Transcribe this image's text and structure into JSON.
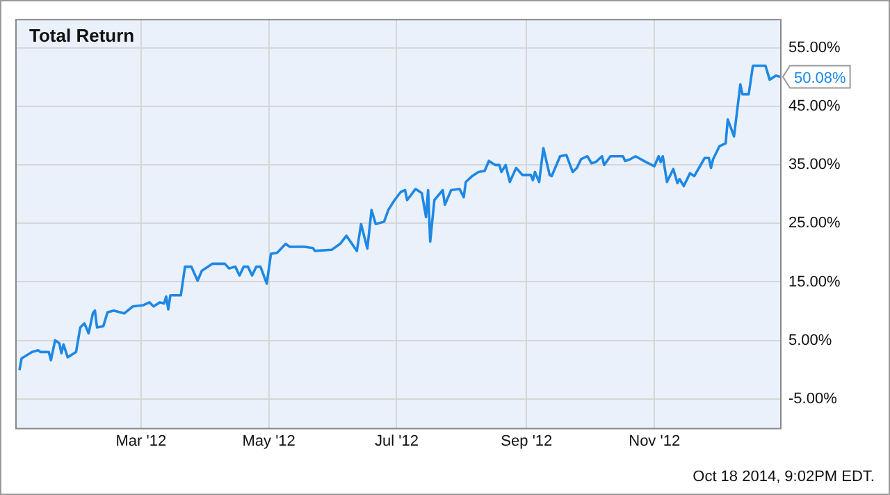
{
  "chart_data": {
    "type": "line",
    "title": "Total Return",
    "x": [
      "2012-01-03",
      "2012-01-04",
      "2012-01-09",
      "2012-01-12",
      "2012-01-13",
      "2012-01-17",
      "2012-01-18",
      "2012-01-20",
      "2012-01-22",
      "2012-01-23",
      "2012-01-24",
      "2012-01-26",
      "2012-01-30",
      "2012-02-01",
      "2012-02-03",
      "2012-02-05",
      "2012-02-07",
      "2012-02-08",
      "2012-02-09",
      "2012-02-12",
      "2012-02-14",
      "2012-02-17",
      "2012-02-22",
      "2012-02-26",
      "2012-03-02",
      "2012-03-05",
      "2012-03-07",
      "2012-03-10",
      "2012-03-12",
      "2012-03-13",
      "2012-03-14",
      "2012-03-15",
      "2012-03-20",
      "2012-03-22",
      "2012-03-25",
      "2012-03-28",
      "2012-03-30",
      "2012-04-04",
      "2012-04-10",
      "2012-04-12",
      "2012-04-15",
      "2012-04-17",
      "2012-04-19",
      "2012-04-21",
      "2012-04-23",
      "2012-04-25",
      "2012-04-27",
      "2012-04-30",
      "2012-05-02",
      "2012-05-05",
      "2012-05-09",
      "2012-05-11",
      "2012-05-18",
      "2012-05-22",
      "2012-05-23",
      "2012-05-31",
      "2012-06-04",
      "2012-06-07",
      "2012-06-12",
      "2012-06-14",
      "2012-06-17",
      "2012-06-19",
      "2012-06-21",
      "2012-06-25",
      "2012-06-27",
      "2012-06-30",
      "2012-07-03",
      "2012-07-05",
      "2012-07-06",
      "2012-07-10",
      "2012-07-13",
      "2012-07-15",
      "2012-07-16",
      "2012-07-17",
      "2012-07-19",
      "2012-07-23",
      "2012-07-24",
      "2012-07-27",
      "2012-07-31",
      "2012-08-02",
      "2012-08-03",
      "2012-08-06",
      "2012-08-09",
      "2012-08-12",
      "2012-08-14",
      "2012-08-17",
      "2012-08-19",
      "2012-08-20",
      "2012-08-22",
      "2012-08-24",
      "2012-08-27",
      "2012-08-30",
      "2012-09-03",
      "2012-09-04",
      "2012-09-05",
      "2012-09-07",
      "2012-09-09",
      "2012-09-12",
      "2012-09-13",
      "2012-09-17",
      "2012-09-20",
      "2012-09-23",
      "2012-09-25",
      "2012-09-27",
      "2012-09-30",
      "2012-10-02",
      "2012-10-04",
      "2012-10-07",
      "2012-10-08",
      "2012-10-11",
      "2012-10-17",
      "2012-10-18",
      "2012-10-20",
      "2012-10-23",
      "2012-10-28",
      "2012-11-01",
      "2012-11-03",
      "2012-11-04",
      "2012-11-05",
      "2012-11-07",
      "2012-11-10",
      "2012-11-12",
      "2012-11-13",
      "2012-11-15",
      "2012-11-18",
      "2012-11-20",
      "2012-11-25",
      "2012-11-27",
      "2012-11-28",
      "2012-11-29",
      "2012-12-02",
      "2012-12-05",
      "2012-12-06",
      "2012-12-09",
      "2012-12-12",
      "2012-12-13",
      "2012-12-16",
      "2012-12-18",
      "2012-12-24",
      "2012-12-26",
      "2012-12-29",
      "2012-12-31"
    ],
    "series": [
      {
        "color": "#1e88e5",
        "values": [
          -0.1,
          1.9,
          3.0,
          3.3,
          3.0,
          3.0,
          1.6,
          5.0,
          4.5,
          2.8,
          4.3,
          2.1,
          3.0,
          7.2,
          7.9,
          6.2,
          9.6,
          10.1,
          7.2,
          7.4,
          9.8,
          10.1,
          9.6,
          10.8,
          11.0,
          11.5,
          10.8,
          11.5,
          11.3,
          12.5,
          10.3,
          12.7,
          12.7,
          17.6,
          17.6,
          15.2,
          16.9,
          18.1,
          18.1,
          17.3,
          17.6,
          16.1,
          17.6,
          17.6,
          16.1,
          17.6,
          17.6,
          14.7,
          19.8,
          20.0,
          21.5,
          21.0,
          21.0,
          20.8,
          20.3,
          20.5,
          21.5,
          22.9,
          20.3,
          24.9,
          20.7,
          27.3,
          24.9,
          25.3,
          27.3,
          29.0,
          30.4,
          30.7,
          29.0,
          30.9,
          30.2,
          26.1,
          30.7,
          21.9,
          29.0,
          30.7,
          28.2,
          30.7,
          30.9,
          29.5,
          32.1,
          33.1,
          33.8,
          34.0,
          35.7,
          35.0,
          35.0,
          33.8,
          35.0,
          32.1,
          34.5,
          33.3,
          33.3,
          32.4,
          33.8,
          32.1,
          37.9,
          33.3,
          33.1,
          36.5,
          36.7,
          33.8,
          34.5,
          36.0,
          36.5,
          35.3,
          35.5,
          36.5,
          35.0,
          36.5,
          36.5,
          35.7,
          35.9,
          36.5,
          35.5,
          34.8,
          36.5,
          35.5,
          36.5,
          32.1,
          34.3,
          31.9,
          32.6,
          31.4,
          33.6,
          33.1,
          36.2,
          36.2,
          34.5,
          36.0,
          38.2,
          38.7,
          42.8,
          39.9,
          48.8,
          47.1,
          47.1,
          52.0,
          52.0,
          49.6,
          50.3,
          50.08
        ]
      }
    ],
    "xlim": [
      "2012-01-01",
      "2012-12-31"
    ],
    "xticks": [
      {
        "value": "2012-03-01",
        "label": "Mar '12"
      },
      {
        "value": "2012-05-01",
        "label": "May '12"
      },
      {
        "value": "2012-07-01",
        "label": "Jul '12"
      },
      {
        "value": "2012-09-01",
        "label": "Sep '12"
      },
      {
        "value": "2012-11-01",
        "label": "Nov '12"
      }
    ],
    "ylim": [
      -10,
      60
    ],
    "yticks": [
      {
        "value": -5,
        "label": "-5.00%"
      },
      {
        "value": 5,
        "label": "5.00%"
      },
      {
        "value": 15,
        "label": "15.00%"
      },
      {
        "value": 25,
        "label": "25.00%"
      },
      {
        "value": 35,
        "label": "35.00%"
      },
      {
        "value": 45,
        "label": "45.00%"
      },
      {
        "value": 55,
        "label": "55.00%"
      }
    ],
    "grid": true,
    "legend": false,
    "marker": "none",
    "line_style": "solid",
    "annotations": [
      {
        "text": "50.08%",
        "x": "2012-12-31",
        "y": 50.08
      },
      "Oct 18 2014, 9:02PM EDT."
    ]
  }
}
